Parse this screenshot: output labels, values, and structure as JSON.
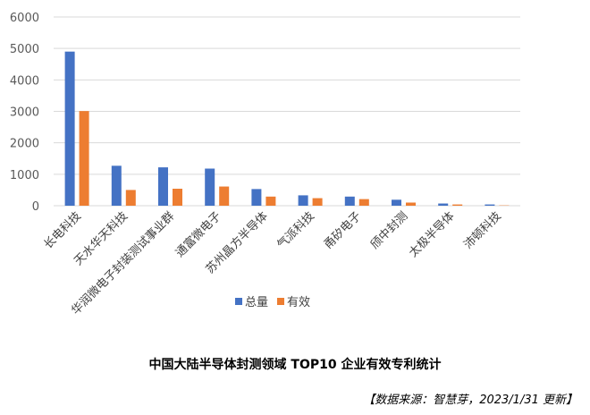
{
  "chart_data": {
    "type": "bar",
    "title": "中国大陆半导体封测领域 TOP10 企业有效专利统计",
    "source": "【数据来源：智慧芽，2023/1/31 更新】",
    "categories": [
      "长电科技",
      "天水华天科技",
      "华润微电子封装测试事业群",
      "通富微电子",
      "苏州晶方半导体",
      "气派科技",
      "甬矽电子",
      "颀中封测",
      "太极半导体",
      "沛顿科技"
    ],
    "series": [
      {
        "name": "总量",
        "color": "#4472C4",
        "values": [
          4900,
          1270,
          1220,
          1180,
          530,
          330,
          290,
          190,
          70,
          40
        ]
      },
      {
        "name": "有效",
        "color": "#ED7D31",
        "values": [
          3010,
          500,
          540,
          610,
          290,
          240,
          210,
          100,
          40,
          10
        ]
      }
    ],
    "yticks": [
      0,
      1000,
      2000,
      3000,
      4000,
      5000,
      6000
    ],
    "ylim": [
      0,
      6000
    ],
    "grid": true,
    "legend_position": "bottom"
  }
}
